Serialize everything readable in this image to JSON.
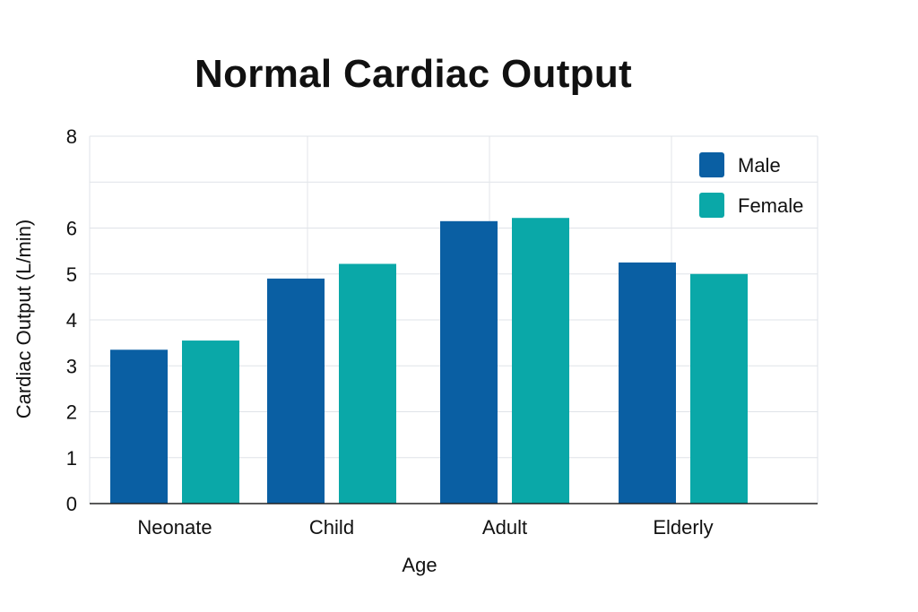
{
  "chart_data": {
    "type": "bar",
    "title": "Normal Cardiac Output",
    "xlabel": "Age",
    "ylabel": "Cardiac Output (L/min)",
    "categories": [
      "Neonate",
      "Child",
      "Adult",
      "Elderly"
    ],
    "series": [
      {
        "name": "Male",
        "color": "#0a5fa3",
        "values": [
          3.35,
          4.9,
          6.15,
          5.25
        ]
      },
      {
        "name": "Female",
        "color": "#0aa8a8",
        "values": [
          3.55,
          5.22,
          6.22,
          5.0
        ]
      }
    ],
    "ylim": [
      0,
      8
    ],
    "yticks": [
      0,
      1,
      2,
      3,
      4,
      5,
      6,
      7,
      8
    ],
    "ytick_labels": [
      "0",
      "1",
      "2",
      "3",
      "4",
      "5",
      "6",
      "",
      "8"
    ],
    "grid": true,
    "legend_position": "top-right"
  }
}
